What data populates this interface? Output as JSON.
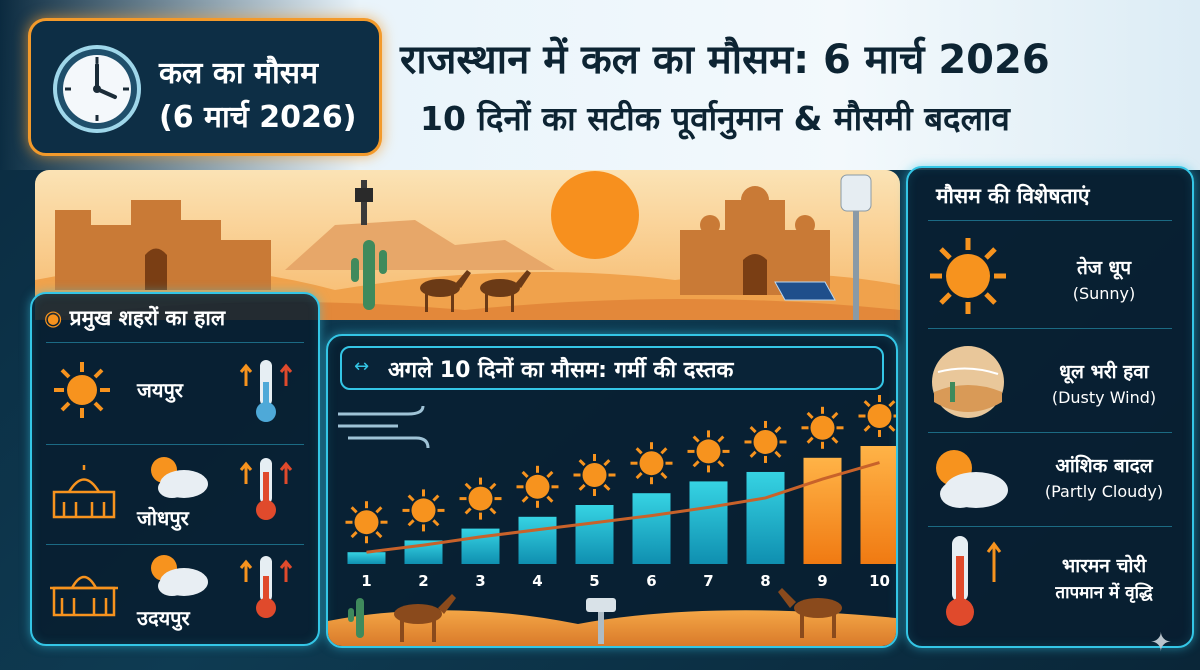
{
  "header": {
    "badge_line1": "कल का मौसम",
    "badge_line2": "(6 मार्च 2026)",
    "title": "राजस्थान में कल का मौसम: 6 मार्च 2026",
    "subtitle": "10 दिनों का सटीक पूर्वानुमान & मौसमी बदलाव",
    "icon": "clock-icon"
  },
  "cities": {
    "title": "प्रमुख शहरों का हाल",
    "items": [
      {
        "name": "जयपुर",
        "icon": "sun-icon",
        "trend": "rising-temperature"
      },
      {
        "name": "जोधपुर",
        "icon": "partly-cloudy-icon",
        "trend": "rising-temperature"
      },
      {
        "name": "उदयपुर",
        "icon": "partly-cloudy-icon",
        "trend": "rising-temperature"
      }
    ]
  },
  "forecast": {
    "title": "अगले 10 दिनों का मौसम: गर्मी की दस्तक"
  },
  "chart_data": {
    "type": "bar",
    "title": "अगले 10 दिनों का मौसम: गर्मी की दस्तक",
    "categories": [
      "1",
      "2",
      "3",
      "4",
      "5",
      "6",
      "7",
      "8",
      "9",
      "10"
    ],
    "values": [
      1,
      2,
      3,
      4,
      5,
      6,
      7,
      7.8,
      9,
      10
    ],
    "trend_line": [
      1,
      1.6,
      2.3,
      2.9,
      3.5,
      4.1,
      4.8,
      5.6,
      7.2,
      8.6
    ],
    "ylim": [
      0,
      12
    ],
    "grid": false,
    "legend": "none",
    "colors": {
      "teal": "#1fc0d6",
      "orange": "#f7931e",
      "trend": "#c8622a"
    }
  },
  "features": {
    "title": "मौसम की विशेषताएं",
    "items": [
      {
        "hi": "तेज धूप",
        "en": "(Sunny)",
        "icon": "sun-icon"
      },
      {
        "hi": "धूल भरी हवा",
        "en": "(Dusty Wind)",
        "icon": "dusty-wind-icon"
      },
      {
        "hi": "आंशिक बादल",
        "en": "(Partly Cloudy)",
        "icon": "partly-cloudy-icon"
      },
      {
        "hi": "भारमन चोरी",
        "en": "तापमान में वृद्धि",
        "icon": "thermometer-icon"
      }
    ]
  },
  "colors": {
    "accent": "#34c6e6",
    "sun": "#f7931e",
    "panel": "#0d2e45"
  }
}
